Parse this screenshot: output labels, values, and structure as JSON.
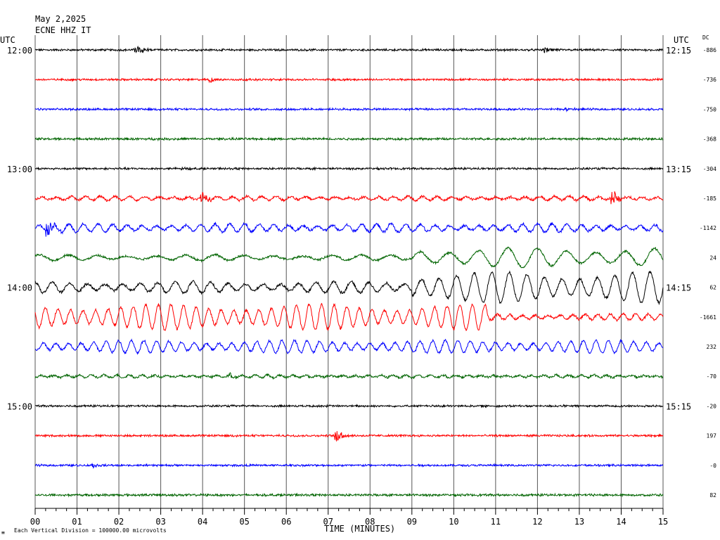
{
  "header": {
    "date": "May 2,2025",
    "station": "ECNE HHZ IT"
  },
  "left_axis_title": "UTC",
  "right_axis_title": "UTC",
  "dc_title": "DC",
  "footer": {
    "scale_note": "Each Vertical Division = 100000.00 microvolts",
    "logo_mark": "≡"
  },
  "chart_data": {
    "type": "line",
    "title": "ECNE HHZ IT",
    "subtitle": "May 2,2025",
    "xlabel": "TIME (MINUTES)",
    "ylabel": "UTC",
    "xlim": [
      0,
      15
    ],
    "x_ticks": [
      "00",
      "01",
      "02",
      "03",
      "04",
      "05",
      "06",
      "07",
      "08",
      "09",
      "10",
      "11",
      "12",
      "13",
      "14",
      "15"
    ],
    "x_minor_ticks_per_minute": 4,
    "grid": true,
    "vertical_division_microvolts": 100000.0,
    "traces": [
      {
        "row": 0,
        "color": "#000000",
        "left_label": "12:00",
        "right_label": "12:15",
        "dc": "-886",
        "noise": 0.9,
        "events": [
          {
            "t": 2.4,
            "amp": 6,
            "dur": 0.6
          },
          {
            "t": 12.2,
            "amp": 4,
            "dur": 0.4
          }
        ]
      },
      {
        "row": 1,
        "color": "#ff0000",
        "left_label": "",
        "right_label": "",
        "dc": "-736",
        "noise": 0.9,
        "events": [
          {
            "t": 4.2,
            "amp": 4,
            "dur": 0.3
          }
        ]
      },
      {
        "row": 2,
        "color": "#0000ff",
        "left_label": "",
        "right_label": "",
        "dc": "-750",
        "noise": 0.9,
        "events": [
          {
            "t": 12.7,
            "amp": 3,
            "dur": 0.3
          }
        ]
      },
      {
        "row": 3,
        "color": "#006400",
        "left_label": "",
        "right_label": "",
        "dc": "-368",
        "noise": 1.0,
        "events": []
      },
      {
        "row": 4,
        "color": "#000000",
        "left_label": "13:00",
        "right_label": "13:15",
        "dc": "-304",
        "noise": 0.9,
        "events": [
          {
            "t": 3.5,
            "amp": 3,
            "dur": 0.3
          }
        ]
      },
      {
        "row": 5,
        "color": "#ff0000",
        "left_label": "",
        "right_label": "",
        "dc": "-185",
        "noise": 1.1,
        "events": [
          {
            "t": 4.0,
            "amp": 8,
            "dur": 0.4
          },
          {
            "t": 13.8,
            "amp": 10,
            "dur": 0.4
          }
        ],
        "swell": 3,
        "swell_period": 0.35
      },
      {
        "row": 6,
        "color": "#0000ff",
        "left_label": "",
        "right_label": "",
        "dc": "-1142",
        "noise": 1.2,
        "events": [
          {
            "t": 0.3,
            "amp": 10,
            "dur": 0.5
          }
        ],
        "swell": 6,
        "swell_period": 0.35
      },
      {
        "row": 7,
        "color": "#006400",
        "left_label": "",
        "right_label": "",
        "dc": "24",
        "noise": 1.0,
        "events": [],
        "swell": 4,
        "swell_period": 0.7,
        "swell_after": 9.0,
        "swell_after_amp": 14
      },
      {
        "row": 8,
        "color": "#000000",
        "left_label": "14:00",
        "right_label": "14:15",
        "dc": "62",
        "noise": 1.2,
        "events": [],
        "swell": 8,
        "swell_period": 0.42,
        "swell_after": 9.0,
        "swell_after_amp": 22
      },
      {
        "row": 9,
        "color": "#ff0000",
        "left_label": "",
        "right_label": "",
        "dc": "-1661",
        "noise": 1.2,
        "events": [],
        "swell": 18,
        "swell_period": 0.3,
        "swell_before": 10.8
      },
      {
        "row": 10,
        "color": "#0000ff",
        "left_label": "",
        "right_label": "",
        "dc": "232",
        "noise": 1.0,
        "events": [],
        "swell": 9,
        "swell_period": 0.3
      },
      {
        "row": 11,
        "color": "#006400",
        "left_label": "",
        "right_label": "",
        "dc": "-70",
        "noise": 1.0,
        "events": [
          {
            "t": 4.7,
            "amp": 4,
            "dur": 0.3
          }
        ],
        "swell": 2,
        "swell_period": 0.3
      },
      {
        "row": 12,
        "color": "#000000",
        "left_label": "15:00",
        "right_label": "15:15",
        "dc": "-20",
        "noise": 0.9,
        "events": []
      },
      {
        "row": 13,
        "color": "#ff0000",
        "left_label": "",
        "right_label": "",
        "dc": "197",
        "noise": 0.9,
        "events": [
          {
            "t": 7.2,
            "amp": 12,
            "dur": 0.3
          }
        ]
      },
      {
        "row": 14,
        "color": "#0000ff",
        "left_label": "",
        "right_label": "",
        "dc": "-0",
        "noise": 0.9,
        "events": [
          {
            "t": 1.4,
            "amp": 3,
            "dur": 0.3
          }
        ]
      },
      {
        "row": 15,
        "color": "#006400",
        "left_label": "",
        "right_label": "",
        "dc": "82",
        "noise": 1.0,
        "events": []
      }
    ]
  }
}
